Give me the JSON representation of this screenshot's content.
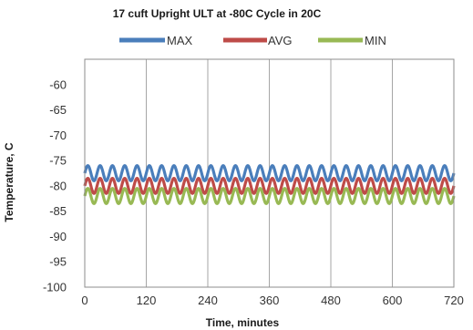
{
  "chart_data": {
    "type": "line",
    "title": "17 cuft Upright ULT at -80C Cycle in 20C",
    "xlabel": "Time, minutes",
    "ylabel": "Temperature, C",
    "xlim": [
      0,
      720
    ],
    "ylim": [
      -100,
      -55
    ],
    "xticks": [
      0,
      120,
      240,
      360,
      480,
      600,
      720
    ],
    "yticks": [
      -60,
      -65,
      -70,
      -75,
      -80,
      -85,
      -90,
      -95,
      -100
    ],
    "grid": "vertical",
    "legend_position": "top",
    "cycle_period_minutes": 24,
    "series": [
      {
        "name": "MAX",
        "color": "#4a7ebb",
        "mean": -77.5,
        "amplitude": 1.5
      },
      {
        "name": "AVG",
        "color": "#be4b48",
        "mean": -80.0,
        "amplitude": 1.5
      },
      {
        "name": "MIN",
        "color": "#98b954",
        "mean": -82.0,
        "amplitude": 1.5
      }
    ]
  }
}
